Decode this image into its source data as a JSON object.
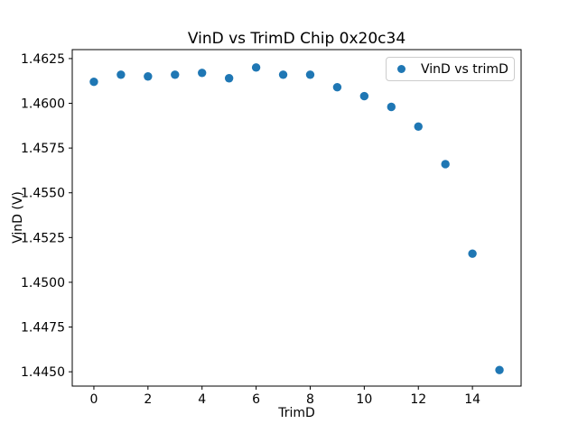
{
  "chart_data": {
    "type": "scatter",
    "title": "VinD vs TrimD Chip 0x20c34",
    "xlabel": "TrimD",
    "ylabel": "VinD (V)",
    "legend": {
      "label": "VinD vs trimD",
      "position": "upper right"
    },
    "x": [
      0,
      1,
      2,
      3,
      4,
      5,
      6,
      7,
      8,
      9,
      10,
      11,
      12,
      13,
      14,
      15
    ],
    "y": [
      1.4612,
      1.4616,
      1.4615,
      1.4616,
      1.4617,
      1.4614,
      1.462,
      1.4616,
      1.4616,
      1.4609,
      1.4604,
      1.4598,
      1.4587,
      1.4566,
      1.4516,
      1.4451
    ],
    "xlim": [
      -0.8,
      15.8
    ],
    "ylim": [
      1.4442,
      1.463
    ],
    "xticks": [
      0,
      2,
      4,
      6,
      8,
      10,
      12,
      14
    ],
    "yticks": [
      1.445,
      1.4475,
      1.45,
      1.4525,
      1.455,
      1.4575,
      1.46,
      1.4625
    ],
    "ytick_decimals": 4,
    "grid": false,
    "marker_color": "#1f77b4",
    "marker_radius_px": 4.7,
    "axis_color": "#000000",
    "background_color": "#ffffff"
  }
}
